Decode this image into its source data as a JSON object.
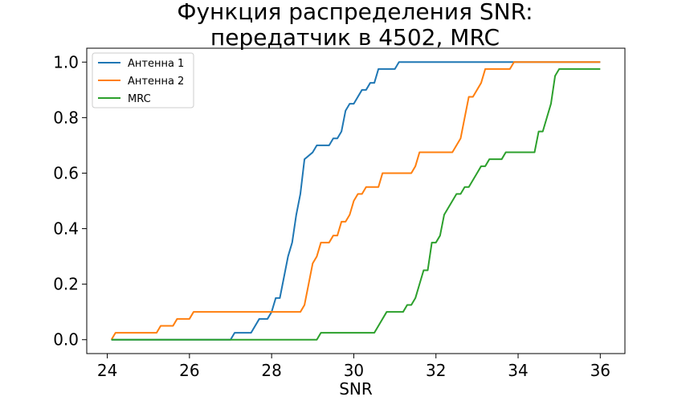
{
  "chart_data": {
    "type": "line",
    "title_lines": [
      "Функция распределения SNR:",
      "передатчик в 4502, MRC"
    ],
    "xlabel": "SNR",
    "ylabel": "",
    "xlim": [
      23.5,
      36.6
    ],
    "ylim": [
      -0.05,
      1.05
    ],
    "xticks": [
      24,
      26,
      28,
      30,
      32,
      34,
      36
    ],
    "xtick_labels": [
      "24",
      "26",
      "28",
      "30",
      "32",
      "34",
      "36"
    ],
    "yticks": [
      0.0,
      0.2,
      0.4,
      0.6,
      0.8,
      1.0
    ],
    "ytick_labels": [
      "0.0",
      "0.2",
      "0.4",
      "0.6",
      "0.8",
      "1.0"
    ],
    "grid": false,
    "legend_position": "upper-left",
    "series": [
      {
        "name": "Антенна 1",
        "color": "#1f77b4",
        "x": [
          24.1,
          27.0,
          27.1,
          27.5,
          27.7,
          27.9,
          28.0,
          28.1,
          28.2,
          28.3,
          28.4,
          28.5,
          28.6,
          28.7,
          28.8,
          29.0,
          29.1,
          29.4,
          29.5,
          29.6,
          29.7,
          29.8,
          29.9,
          30.0,
          30.2,
          30.3,
          30.4,
          30.5,
          30.6,
          31.0,
          31.1,
          33.9,
          36.0
        ],
        "y": [
          0.0,
          0.0,
          0.025,
          0.025,
          0.075,
          0.075,
          0.1,
          0.15,
          0.15,
          0.225,
          0.3,
          0.35,
          0.45,
          0.525,
          0.65,
          0.675,
          0.7,
          0.7,
          0.725,
          0.725,
          0.75,
          0.825,
          0.85,
          0.85,
          0.9,
          0.9,
          0.925,
          0.925,
          0.975,
          0.975,
          1.0,
          1.0,
          1.0
        ]
      },
      {
        "name": "Антенна 2",
        "color": "#ff7f0e",
        "x": [
          24.1,
          24.2,
          25.2,
          25.3,
          25.6,
          25.7,
          26.0,
          26.1,
          28.7,
          28.8,
          28.9,
          29.0,
          29.1,
          29.2,
          29.4,
          29.5,
          29.6,
          29.7,
          29.8,
          29.9,
          30.0,
          30.1,
          30.2,
          30.3,
          30.6,
          30.7,
          31.4,
          31.5,
          31.6,
          32.4,
          32.6,
          32.7,
          32.8,
          32.9,
          33.1,
          33.2,
          33.8,
          33.9,
          36.0
        ],
        "y": [
          0.0,
          0.025,
          0.025,
          0.05,
          0.05,
          0.075,
          0.075,
          0.1,
          0.1,
          0.125,
          0.2,
          0.275,
          0.3,
          0.35,
          0.35,
          0.375,
          0.375,
          0.425,
          0.425,
          0.45,
          0.5,
          0.525,
          0.525,
          0.55,
          0.55,
          0.6,
          0.6,
          0.625,
          0.675,
          0.675,
          0.725,
          0.8,
          0.875,
          0.875,
          0.925,
          0.975,
          0.975,
          1.0,
          1.0
        ]
      },
      {
        "name": "MRC",
        "color": "#2ca02c",
        "x": [
          24.1,
          29.1,
          29.2,
          30.5,
          30.6,
          30.8,
          31.2,
          31.3,
          31.4,
          31.5,
          31.6,
          31.7,
          31.8,
          31.9,
          32.0,
          32.1,
          32.2,
          32.3,
          32.5,
          32.6,
          32.7,
          32.8,
          32.9,
          33.0,
          33.1,
          33.2,
          33.3,
          33.6,
          33.7,
          34.4,
          34.5,
          34.6,
          34.7,
          34.8,
          34.9,
          35.0,
          36.0
        ],
        "y": [
          0.0,
          0.0,
          0.025,
          0.025,
          0.05,
          0.1,
          0.1,
          0.125,
          0.125,
          0.15,
          0.2,
          0.25,
          0.25,
          0.35,
          0.35,
          0.375,
          0.45,
          0.475,
          0.525,
          0.525,
          0.55,
          0.55,
          0.575,
          0.6,
          0.625,
          0.625,
          0.65,
          0.65,
          0.675,
          0.675,
          0.75,
          0.75,
          0.8,
          0.85,
          0.95,
          0.975,
          0.975
        ]
      }
    ]
  }
}
